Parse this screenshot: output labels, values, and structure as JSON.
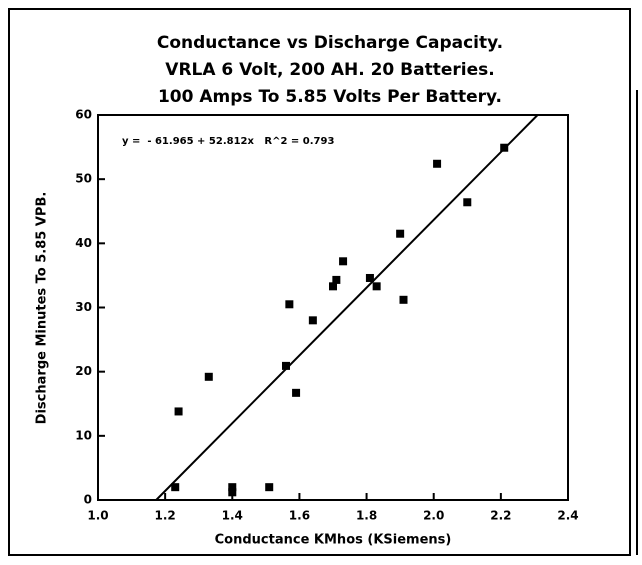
{
  "chart_data": {
    "type": "scatter",
    "title": [
      "Conductance vs Discharge Capacity.",
      "VRLA 6 Volt, 200 AH.  20 Batteries.",
      "100 Amps To 5.85 Volts Per Battery."
    ],
    "x_label": "Conductance KMhos (KSiemens)",
    "y_label": "Discharge Minutes To 5.85 VPB.",
    "annotation": "y =  - 61.965 + 52.812x   R^2 = 0.793",
    "trendline": {
      "intercept": -61.965,
      "slope": 52.812
    },
    "color": "#000000",
    "x": [
      1.24,
      1.23,
      1.33,
      1.4,
      1.4,
      1.51,
      1.56,
      1.57,
      1.59,
      1.64,
      1.7,
      1.71,
      1.73,
      1.81,
      1.83,
      1.9,
      1.91,
      2.01,
      2.1,
      2.21
    ],
    "values": [
      13.8,
      2.0,
      19.2,
      2.0,
      1.2,
      2.0,
      20.9,
      30.5,
      16.7,
      28.0,
      33.3,
      34.3,
      37.2,
      34.6,
      33.3,
      41.5,
      31.2,
      52.4,
      46.4,
      54.9
    ],
    "xlim": [
      1.0,
      2.4
    ],
    "ylim": [
      0,
      60
    ],
    "xticks": [
      {
        "value": 1,
        "label": "1.0"
      },
      1.2,
      1.4,
      1.6,
      1.8,
      {
        "value": 2,
        "label": "2.0"
      },
      2.2,
      2.4
    ],
    "yticks": [
      0,
      10,
      20,
      30,
      40,
      50,
      60
    ]
  }
}
